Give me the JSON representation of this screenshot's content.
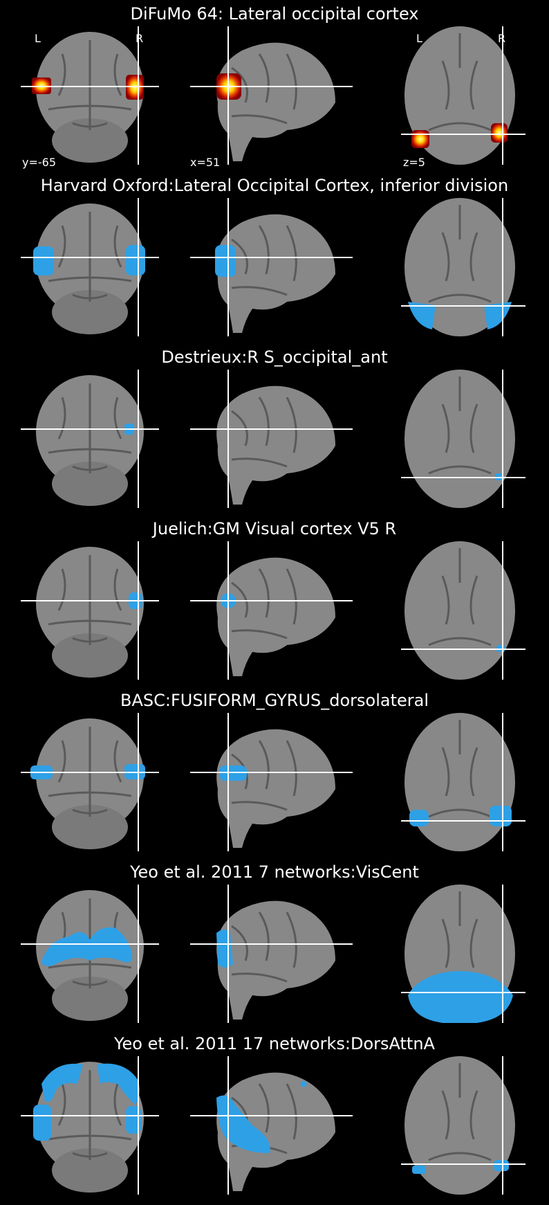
{
  "figure_title": "DiFuMo 64: Lateral occipital cortex",
  "colors": {
    "background": "#000000",
    "brain_gray": "#8c8c8c",
    "crosshair": "#ffffff",
    "overlay_hot": "#ffb000",
    "overlay_blue": "#2ea0e6"
  },
  "orientation_labels": {
    "left": "L",
    "right": "R"
  },
  "cut_labels": {
    "coronal": "y=-65",
    "sagittal": "x=51",
    "axial": "z=5"
  },
  "rows": [
    {
      "title": "DiFuMo 64: Lateral occipital cortex",
      "overlay": "hot",
      "show_cut_labels": true
    },
    {
      "title": "Harvard Oxford:Lateral Occipital Cortex, inferior division",
      "overlay": "blue",
      "show_cut_labels": false
    },
    {
      "title": "Destrieux:R S_occipital_ant",
      "overlay": "blue",
      "show_cut_labels": false
    },
    {
      "title": "Juelich:GM Visual cortex V5 R",
      "overlay": "blue",
      "show_cut_labels": false
    },
    {
      "title": "BASC:FUSIFORM_GYRUS_dorsolateral",
      "overlay": "blue",
      "show_cut_labels": false
    },
    {
      "title": "Yeo et al. 2011 7 networks:VisCent",
      "overlay": "blue",
      "show_cut_labels": false
    },
    {
      "title": "Yeo et al. 2011 17 networks:DorsAttnA",
      "overlay": "blue",
      "show_cut_labels": false
    }
  ]
}
